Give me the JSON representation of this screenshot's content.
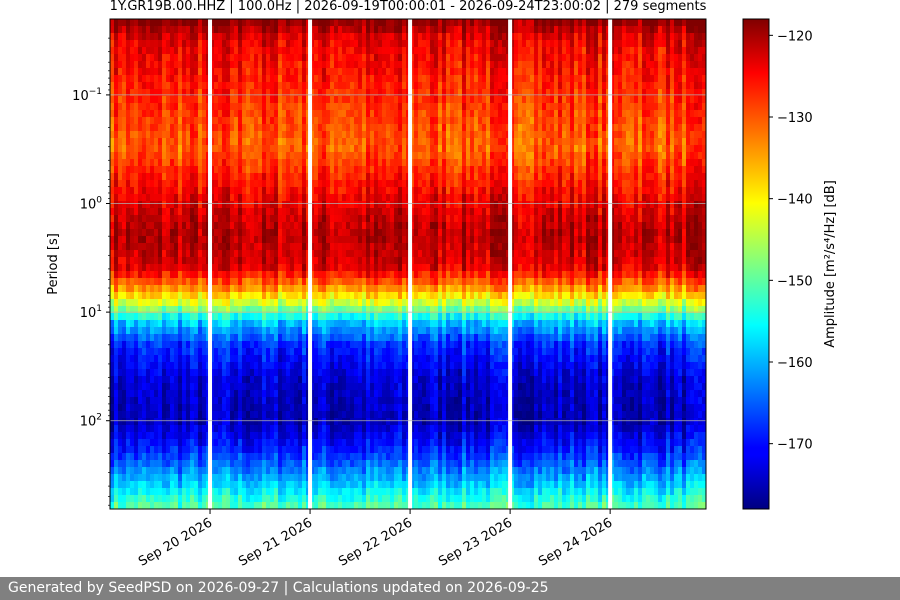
{
  "title": "1Y.GR19B.00.HHZ | 100.0Hz | 2026-09-19T00:00:01 - 2026-09-24T23:00:02 | 279 segments",
  "footer": "Generated by SeedPSD on 2026-09-27 | Calculations updated on 2026-09-25",
  "chart_data": {
    "type": "heatmap",
    "title": "1Y.GR19B.00.HHZ | 100.0Hz | 2026-09-19T00:00:01 - 2026-09-24T23:00:02 | 279 segments",
    "xlabel": "",
    "ylabel": "Period [s]",
    "xlim": [
      "2026-09-19T00:00",
      "2026-09-24T23:00"
    ],
    "x_tick_labels": [
      {
        "label": "Sep 20 2026",
        "date": "2026-09-20"
      },
      {
        "label": "Sep 21 2026",
        "date": "2026-09-21"
      },
      {
        "label": "Sep 22 2026",
        "date": "2026-09-22"
      },
      {
        "label": "Sep 23 2026",
        "date": "2026-09-23"
      },
      {
        "label": "Sep 24 2026",
        "date": "2026-09-24"
      }
    ],
    "y_scale": "log",
    "y_inverted": true,
    "ylim": [
      0.02,
      650
    ],
    "y_ticks": [
      {
        "value": 0.1,
        "base": "10",
        "exp": "−1"
      },
      {
        "value": 1,
        "base": "10",
        "exp": "0"
      },
      {
        "value": 10,
        "base": "10",
        "exp": "1"
      },
      {
        "value": 100,
        "base": "10",
        "exp": "2"
      }
    ],
    "grid": true,
    "colorbar": {
      "label": "Amplitude [m²/s⁴/Hz] [dB]",
      "range": [
        -178,
        -118
      ],
      "ticks": [
        -120,
        -130,
        -140,
        -150,
        -160,
        -170
      ],
      "tick_labels": [
        "−120",
        "−130",
        "−140",
        "−150",
        "−160",
        "−170"
      ],
      "colormap": "jet"
    },
    "data_gaps": [
      "2026-09-20T00:00",
      "2026-09-21T00:00",
      "2026-09-22T00:00",
      "2026-09-23T00:00",
      "2026-09-24T00:00"
    ],
    "period_profile_db": [
      {
        "period": 0.02,
        "db": -118
      },
      {
        "period": 0.03,
        "db": -124
      },
      {
        "period": 0.1,
        "db": -128
      },
      {
        "period": 0.3,
        "db": -131
      },
      {
        "period": 1,
        "db": -124
      },
      {
        "period": 2,
        "db": -121
      },
      {
        "period": 4,
        "db": -124
      },
      {
        "period": 6,
        "db": -134
      },
      {
        "period": 9,
        "db": -146
      },
      {
        "period": 12,
        "db": -158
      },
      {
        "period": 20,
        "db": -168
      },
      {
        "period": 40,
        "db": -173
      },
      {
        "period": 100,
        "db": -175
      },
      {
        "period": 200,
        "db": -168
      },
      {
        "period": 400,
        "db": -158
      },
      {
        "period": 650,
        "db": -150
      }
    ]
  }
}
